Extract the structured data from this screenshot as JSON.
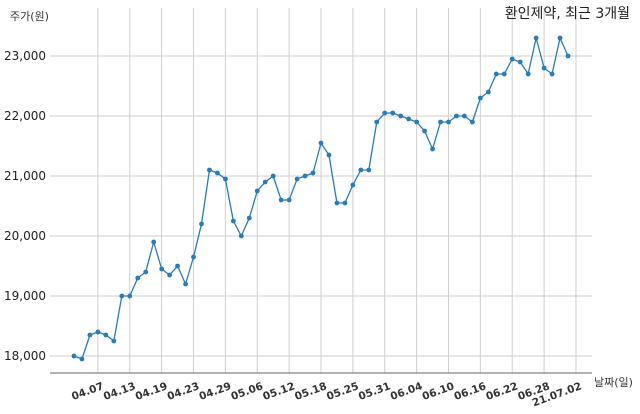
{
  "chart_data": {
    "type": "line",
    "title": "환인제약, 최근 3개월",
    "ylabel": "주가(원)",
    "xlabel": "날짜(일)",
    "ylim": [
      17700,
      23600
    ],
    "yticks": [
      18000,
      19000,
      20000,
      21000,
      22000,
      23000
    ],
    "ytick_labels": [
      "18,000",
      "19,000",
      "20,000",
      "21,000",
      "22,000",
      "23,000"
    ],
    "xtick_labels": [
      "04.07",
      "04.13",
      "04.19",
      "04.23",
      "04.29",
      "05.06",
      "05.12",
      "05.18",
      "05.25",
      "05.31",
      "06.04",
      "06.10",
      "06.16",
      "06.22",
      "06.28",
      "21.07.02"
    ],
    "xtick_indices": [
      3,
      7,
      11,
      15,
      19,
      23,
      27,
      31,
      35,
      39,
      43,
      47,
      51,
      55,
      59,
      63
    ],
    "grid": true,
    "series": [
      {
        "values": [
          18000,
          17950,
          18350,
          18400,
          18350,
          18250,
          19000,
          19000,
          19300,
          19400,
          19900,
          19450,
          19350,
          19500,
          19200,
          19650,
          20200,
          21100,
          21050,
          20950,
          20250,
          20000,
          20300,
          20750,
          20900,
          21000,
          20600,
          20600,
          20950,
          21000,
          21050,
          21550,
          21350,
          20550,
          20550,
          20850,
          21100,
          21100,
          21900,
          22050,
          22050,
          22000,
          21950,
          21900,
          21750,
          21450,
          21900,
          21900,
          22000,
          22000,
          21900,
          22300,
          22400,
          22700,
          22700,
          22950,
          22900,
          22700,
          23300,
          22800,
          22700,
          23300,
          23000
        ]
      }
    ],
    "color": "#2b7bb5"
  }
}
